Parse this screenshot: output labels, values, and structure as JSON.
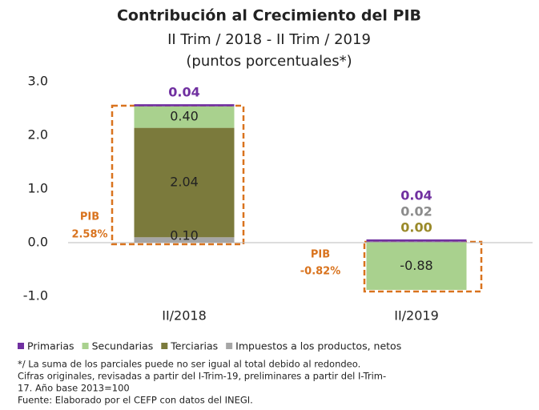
{
  "chart_data": {
    "type": "stacked_bar",
    "title": "Contribución al Crecimiento del PIB",
    "subtitle": [
      "II Trim / 2018 - II Trim / 2019",
      "(puntos porcentuales*)"
    ],
    "categories": [
      "II/2018",
      "II/2019"
    ],
    "series": [
      {
        "name": "Primarias",
        "color": "#7030a0",
        "values": [
          0.04,
          0.04
        ],
        "value_labels": [
          "0.04",
          "0.04"
        ]
      },
      {
        "name": "Secundarias",
        "color": "#a9d18e",
        "values": [
          0.4,
          -0.88
        ],
        "value_labels": [
          "0.40",
          "-0.88"
        ]
      },
      {
        "name": "Terciarias",
        "color": "#7b7a3c",
        "values": [
          2.04,
          0.0
        ],
        "value_labels": [
          "2.04",
          "0.00"
        ]
      },
      {
        "name": "Impuestos a los productos, netos",
        "color": "#a6a6a6",
        "values": [
          0.1,
          0.02
        ],
        "value_labels": [
          "0.10",
          "0.02"
        ]
      }
    ],
    "annotations": [
      {
        "label": "PIB",
        "value": "2.58%"
      },
      {
        "label": "PIB",
        "value": "-0.82%"
      }
    ],
    "ylim": [
      -1,
      3
    ],
    "yticks": [
      {
        "value": -1,
        "label": "-1.0"
      },
      {
        "value": 0,
        "label": "0.0"
      },
      {
        "value": 1,
        "label": "1.0"
      },
      {
        "value": 2,
        "label": "2.0"
      },
      {
        "value": 3,
        "label": "3.0"
      }
    ],
    "notes": [
      "*/ La suma de los parciales puede no ser igual al total debido al redondeo.",
      "Cifras originales, revisadas a partir del I-Trim-19, preliminares a partir del I-Trim-",
      "17. Año base 2013=100",
      "Fuente: Elaborado por el CEFP con datos del INEGI."
    ]
  }
}
